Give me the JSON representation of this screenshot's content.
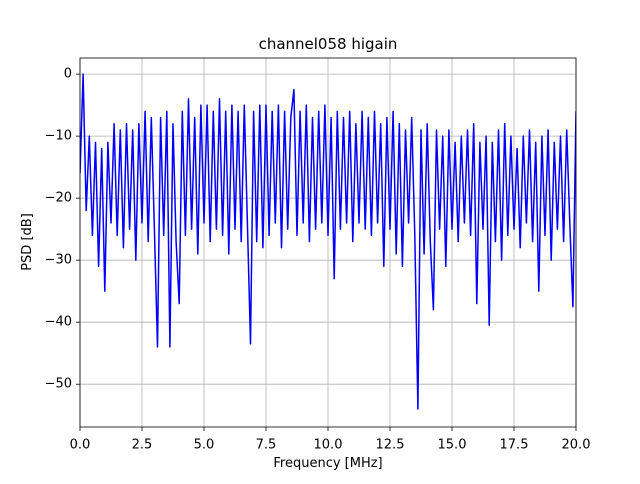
{
  "chart_data": {
    "type": "line",
    "title": "channel058 higain",
    "xlabel": "Frequency [MHz]",
    "ylabel": "PSD [dB]",
    "grid": true,
    "xlim": [
      0,
      20
    ],
    "ylim": [
      -56.9,
      2.6
    ],
    "xticks": [
      {
        "value": 0,
        "label": "0.0"
      },
      2.5,
      {
        "value": 5,
        "label": "5.0"
      },
      7.5,
      {
        "value": 10,
        "label": "10.0"
      },
      12.5,
      {
        "value": 15,
        "label": "15.0"
      },
      17.5,
      {
        "value": 20,
        "label": "20.0"
      }
    ],
    "yticks": [
      0,
      {
        "value": -10,
        "label": "−10"
      },
      {
        "value": -20,
        "label": "−20"
      },
      {
        "value": -30,
        "label": "−30"
      },
      {
        "value": -40,
        "label": "−40"
      },
      {
        "value": -50,
        "label": "−50"
      }
    ],
    "series": [
      {
        "color": "#0000ff",
        "x": [
          0,
          0.125,
          0.25,
          0.375,
          0.5,
          0.625,
          0.75,
          0.875,
          1,
          1.125,
          1.25,
          1.375,
          1.5,
          1.625,
          1.75,
          1.875,
          2,
          2.125,
          2.25,
          2.375,
          2.5,
          2.625,
          2.75,
          2.875,
          3,
          3.125,
          3.25,
          3.375,
          3.5,
          3.625,
          3.75,
          3.875,
          4,
          4.125,
          4.25,
          4.375,
          4.5,
          4.625,
          4.75,
          4.875,
          5,
          5.125,
          5.25,
          5.375,
          5.5,
          5.625,
          5.75,
          5.875,
          6,
          6.125,
          6.25,
          6.375,
          6.5,
          6.625,
          6.75,
          6.875,
          7,
          7.125,
          7.25,
          7.375,
          7.5,
          7.625,
          7.75,
          7.875,
          8,
          8.125,
          8.25,
          8.375,
          8.5,
          8.625,
          8.75,
          8.875,
          9,
          9.125,
          9.25,
          9.375,
          9.5,
          9.625,
          9.75,
          9.875,
          10,
          10.125,
          10.25,
          10.375,
          10.5,
          10.625,
          10.75,
          10.875,
          11,
          11.125,
          11.25,
          11.375,
          11.5,
          11.625,
          11.75,
          11.875,
          12,
          12.125,
          12.25,
          12.375,
          12.5,
          12.625,
          12.75,
          12.875,
          13,
          13.125,
          13.25,
          13.375,
          13.5,
          13.625,
          13.75,
          13.875,
          14,
          14.125,
          14.25,
          14.375,
          14.5,
          14.625,
          14.75,
          14.875,
          15,
          15.125,
          15.25,
          15.375,
          15.5,
          15.625,
          15.75,
          15.875,
          16,
          16.125,
          16.25,
          16.375,
          16.5,
          16.625,
          16.75,
          16.875,
          17,
          17.125,
          17.25,
          17.375,
          17.5,
          17.625,
          17.75,
          17.875,
          18,
          18.125,
          18.25,
          18.375,
          18.5,
          18.625,
          18.75,
          18.875,
          19,
          19.125,
          19.25,
          19.375,
          19.5,
          19.625,
          19.75,
          19.875,
          20
        ],
        "values": [
          -16,
          0,
          -22,
          -10,
          -26,
          -11,
          -31,
          -12,
          -35,
          -11,
          -24,
          -8,
          -26,
          -9,
          -28,
          -8,
          -25,
          -9,
          -30,
          -8,
          -24,
          -6,
          -27,
          -7,
          -25,
          -44,
          -7,
          -26,
          -6,
          -44,
          -8,
          -27,
          -37,
          -6,
          -26,
          -4,
          -25,
          -7,
          -29,
          -5,
          -24,
          -5,
          -27,
          -6,
          -25,
          -4,
          -26,
          -6,
          -29,
          -5,
          -25,
          -6,
          -27,
          -5,
          -24,
          -43.5,
          -6,
          -27,
          -5,
          -28,
          -5,
          -26,
          -6,
          -24,
          -5,
          -28,
          -6,
          -25,
          -7,
          -2.5,
          -26,
          -6,
          -24,
          -5,
          -27,
          -7,
          -25,
          -6,
          -24,
          -5,
          -26,
          -7,
          -33,
          -6,
          -25,
          -7,
          -24,
          -6,
          -27,
          -8,
          -24,
          -6,
          -25,
          -7,
          -26,
          -6,
          -24,
          -8,
          -31,
          -7,
          -25,
          -6,
          -29,
          -8,
          -31,
          -9,
          -24,
          -7,
          -26,
          -54,
          -9,
          -29,
          -8,
          -27,
          -38,
          -9,
          -25,
          -10,
          -31,
          -9,
          -25,
          -11,
          -27,
          -10,
          -24,
          -9,
          -26,
          -8,
          -37,
          -11,
          -25,
          -10,
          -40.5,
          -11,
          -27,
          -9,
          -30,
          -8,
          -26,
          -10,
          -25,
          -12,
          -28,
          -10,
          -24,
          -9,
          -27,
          -11,
          -35,
          -10,
          -26,
          -9,
          -30,
          -11,
          -25,
          -10,
          -27,
          -9,
          -24,
          -37.5,
          -6
        ]
      }
    ]
  }
}
